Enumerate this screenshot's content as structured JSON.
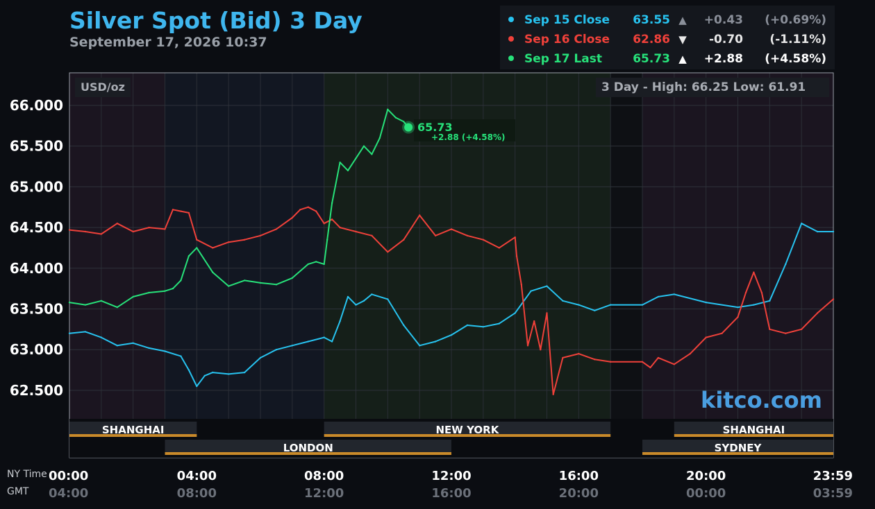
{
  "header": {
    "title": "Silver Spot (Bid) 3 Day",
    "datetime": "September 17, 2026 10:37"
  },
  "legend": [
    {
      "label": "Sep 15 Close",
      "value": "63.55",
      "arrow": "▲",
      "change": "+0.43",
      "pct": "(+0.69%)",
      "color": "#27c3f0",
      "changeColor": "#8a8f99",
      "pctColor": "#8a8f99",
      "arrowColor": "#8a8f99"
    },
    {
      "label": "Sep 16 Close",
      "value": "62.86",
      "arrow": "▼",
      "change": "-0.70",
      "pct": "(-1.11%)",
      "color": "#f0413a",
      "changeColor": "#e8e8e8",
      "pctColor": "#e8e8e8",
      "arrowColor": "#e8e8e8"
    },
    {
      "label": "Sep 17 Last",
      "value": "65.73",
      "arrow": "▲",
      "change": "+2.88",
      "pct": "(+4.58%)",
      "color": "#27e27a",
      "changeColor": "#ffffff",
      "pctColor": "#ffffff",
      "arrowColor": "#ffffff"
    }
  ],
  "plot": {
    "unit_label": "USD/oz",
    "range_label": "3 Day - High: 66.25  Low: 61.91",
    "watermark": "kitco.com",
    "current": {
      "value": "65.73",
      "change": "+2.88 (+4.58%)"
    }
  },
  "sessions": {
    "top": [
      {
        "name": "SHANGHAI",
        "start": 0,
        "end": 4
      },
      {
        "name": "NEW YORK",
        "start": 8,
        "end": 17
      },
      {
        "name": "SHANGHAI",
        "start": 19,
        "end": 24
      }
    ],
    "bottom": [
      {
        "name": "LONDON",
        "start": 3,
        "end": 12
      },
      {
        "name": "SYDNEY",
        "start": 18,
        "end": 24
      }
    ]
  },
  "xaxis": {
    "ny_label": "NY Time",
    "gmt_label": "GMT",
    "ticks": [
      {
        "ny": "00:00",
        "gmt": "04:00",
        "hour": 0
      },
      {
        "ny": "04:00",
        "gmt": "08:00",
        "hour": 4
      },
      {
        "ny": "08:00",
        "gmt": "12:00",
        "hour": 8
      },
      {
        "ny": "12:00",
        "gmt": "16:00",
        "hour": 12
      },
      {
        "ny": "16:00",
        "gmt": "20:00",
        "hour": 16
      },
      {
        "ny": "20:00",
        "gmt": "00:00",
        "hour": 20
      },
      {
        "ny": "23:59",
        "gmt": "03:59",
        "hour": 24
      }
    ]
  },
  "colors": {
    "sep15": "#27c3f0",
    "sep16": "#f0413a",
    "sep17": "#27e27a",
    "accent": "#3fb6ee",
    "session_bar": "#c98a2a"
  },
  "chart_data": {
    "type": "line",
    "title": "Silver Spot (Bid) 3 Day",
    "ylabel": "USD/oz",
    "ylim": [
      62.15,
      66.4
    ],
    "yticks": [
      62.5,
      63.0,
      63.5,
      64.0,
      64.5,
      65.0,
      65.5,
      66.0
    ],
    "xlim": [
      0,
      24
    ],
    "x_unit": "NY time (hours)",
    "grid": true,
    "series": [
      {
        "name": "Sep 15 Close",
        "color": "#27c3f0",
        "x": [
          0,
          0.5,
          1,
          1.5,
          2,
          2.5,
          3,
          3.5,
          3.75,
          4,
          4.25,
          4.5,
          5,
          5.5,
          6,
          6.5,
          7,
          7.5,
          8,
          8.25,
          8.5,
          8.75,
          9,
          9.25,
          9.5,
          10,
          10.5,
          11,
          11.5,
          12,
          12.5,
          13,
          13.5,
          14,
          14.5,
          15,
          15.5,
          16,
          16.5,
          17,
          18,
          18.5,
          19,
          20,
          21,
          21.5,
          22,
          22.5,
          23,
          23.5,
          24
        ],
        "y": [
          63.2,
          63.22,
          63.15,
          63.05,
          63.08,
          63.02,
          62.98,
          62.92,
          62.75,
          62.55,
          62.68,
          62.72,
          62.7,
          62.72,
          62.9,
          63.0,
          63.05,
          63.1,
          63.15,
          63.1,
          63.35,
          63.65,
          63.55,
          63.6,
          63.68,
          63.62,
          63.3,
          63.05,
          63.1,
          63.18,
          63.3,
          63.28,
          63.32,
          63.45,
          63.72,
          63.78,
          63.6,
          63.55,
          63.48,
          63.55,
          63.55,
          63.65,
          63.68,
          63.58,
          63.52,
          63.55,
          63.6,
          64.05,
          64.55,
          64.45,
          64.45
        ]
      },
      {
        "name": "Sep 16 Close",
        "color": "#f0413a",
        "x": [
          0,
          0.5,
          1,
          1.5,
          2,
          2.5,
          3,
          3.25,
          3.5,
          3.75,
          4,
          4.5,
          5,
          5.5,
          6,
          6.5,
          7,
          7.25,
          7.5,
          7.75,
          8,
          8.25,
          8.5,
          9,
          9.5,
          10,
          10.5,
          11,
          11.5,
          12,
          12.5,
          13,
          13.5,
          14,
          14.05,
          14.2,
          14.4,
          14.6,
          14.8,
          15,
          15.2,
          15.5,
          16,
          16.5,
          17,
          18,
          18.25,
          18.5,
          19,
          19.5,
          20,
          20.5,
          21,
          21.25,
          21.5,
          21.75,
          22,
          22.5,
          23,
          23.5,
          24
        ],
        "y": [
          64.47,
          64.45,
          64.42,
          64.55,
          64.45,
          64.5,
          64.48,
          64.72,
          64.7,
          64.68,
          64.35,
          64.25,
          64.32,
          64.35,
          64.4,
          64.48,
          64.62,
          64.72,
          64.75,
          64.7,
          64.55,
          64.6,
          64.5,
          64.45,
          64.4,
          64.2,
          64.35,
          64.65,
          64.4,
          64.48,
          64.4,
          64.35,
          64.25,
          64.38,
          64.15,
          63.8,
          63.05,
          63.35,
          63.0,
          63.45,
          62.45,
          62.9,
          62.95,
          62.88,
          62.85,
          62.85,
          62.78,
          62.9,
          62.82,
          62.95,
          63.15,
          63.2,
          63.4,
          63.7,
          63.95,
          63.7,
          63.25,
          63.2,
          63.25,
          63.45,
          63.62
        ]
      },
      {
        "name": "Sep 17 Last",
        "color": "#27e27a",
        "x": [
          0,
          0.5,
          1,
          1.5,
          2,
          2.5,
          3,
          3.25,
          3.5,
          3.75,
          4,
          4.5,
          5,
          5.5,
          6,
          6.5,
          7,
          7.5,
          7.75,
          8,
          8.1,
          8.25,
          8.5,
          8.75,
          9,
          9.25,
          9.5,
          9.75,
          10,
          10.25,
          10.5,
          10.65
        ],
        "y": [
          63.58,
          63.55,
          63.6,
          63.52,
          63.65,
          63.7,
          63.72,
          63.75,
          63.85,
          64.15,
          64.25,
          63.95,
          63.78,
          63.85,
          63.82,
          63.8,
          63.88,
          64.05,
          64.08,
          64.05,
          64.35,
          64.8,
          65.3,
          65.2,
          65.35,
          65.5,
          65.4,
          65.6,
          65.95,
          65.85,
          65.8,
          65.73
        ]
      }
    ]
  }
}
